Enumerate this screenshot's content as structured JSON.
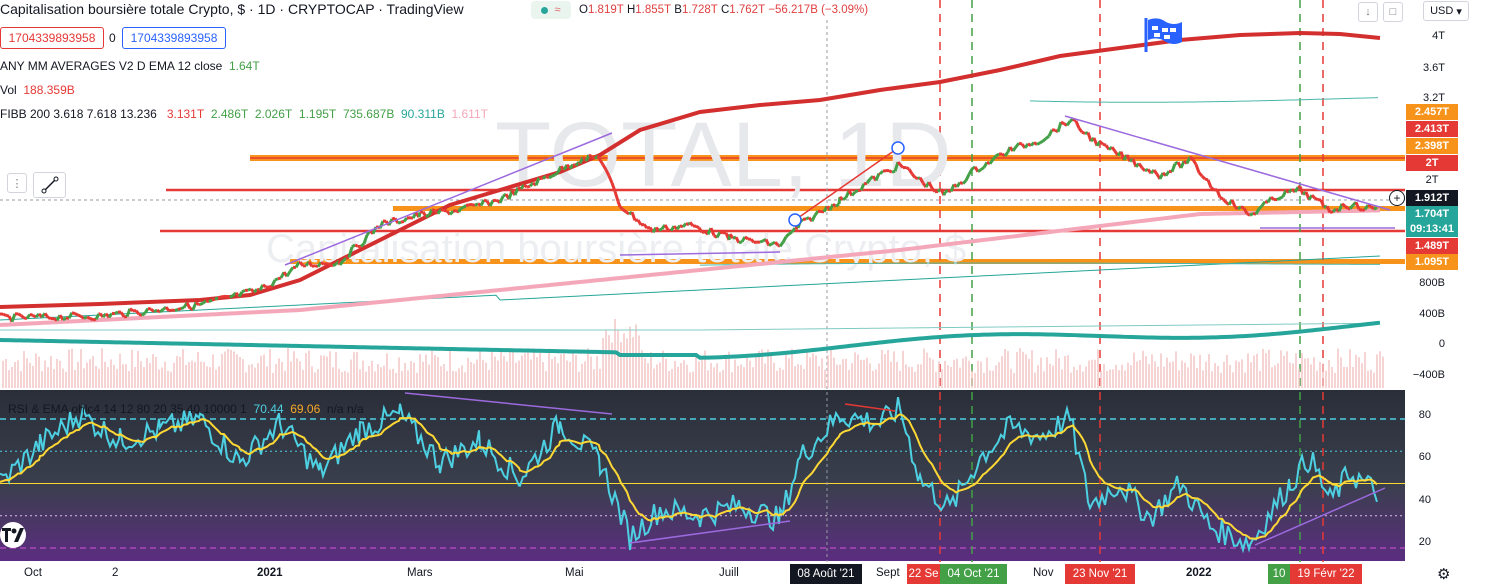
{
  "header": {
    "symbol_name": "Capitalisation boursière totale Crypto, $",
    "sep1": " · ",
    "interval": "1D",
    "sep2": " · ",
    "exchange": "CRYPTOCAP",
    "sep3": " · ",
    "source": "TradingView",
    "badge": "≈",
    "ohlc": {
      "o_label": "O",
      "o": "1.819T",
      "h_label": "H",
      "h": "1.855T",
      "b_label": "B",
      "b": "1.728T",
      "c_label": "C",
      "c": "1.762T",
      "change": "−56.217B (−3.09%)"
    }
  },
  "order_bar": {
    "sell_price": "1704339893958",
    "qty": "0",
    "buy_price": "1704339893958"
  },
  "indicators": {
    "mm_name": "ANY MM AVERAGES V2 D EMA 12 close",
    "mm_value": "1.64T",
    "vol_name": "Vol",
    "vol_value": "188.359B",
    "fibb_name": "FIBB 200 3.618 7.618 13.236",
    "fibb_values": [
      "3.131T",
      "2.486T",
      "2.026T",
      "1.195T",
      "735.687B",
      "90.311B",
      "1.611T"
    ],
    "rsi_name": "RSI & EMA ohlc4 14 12 80 20 35 40 10000 1",
    "rsi_value1": "70.44",
    "rsi_value2": "69.06",
    "rsi_nd": "n/a n/a"
  },
  "watermark": {
    "big": "TOTAL, 1D",
    "small": "Capitalisation boursière totale Crypto, $"
  },
  "price_axis": {
    "currency": "USD",
    "ticks": [
      "4T",
      "3.6T",
      "3.2T",
      "2T",
      "800B",
      "400B",
      "0",
      "−400B"
    ],
    "labels": [
      {
        "text": "2.457T",
        "color": "#f7931a"
      },
      {
        "text": "2.413T",
        "color": "#e53935"
      },
      {
        "text": "2.398T",
        "color": "#f7931a"
      },
      {
        "text": "2T",
        "color": "#e53935"
      },
      {
        "text": "2T",
        "color": "#f7931a"
      },
      {
        "text": "1.912T",
        "color": "#131722"
      },
      {
        "text": "1.704T",
        "color": "#26a69a"
      },
      {
        "text": "09:13:41",
        "color": "#26a69a"
      },
      {
        "text": "1.489T",
        "color": "#e53935"
      },
      {
        "text": "1.095T",
        "color": "#f7931a"
      }
    ]
  },
  "rsi_axis": {
    "ticks": [
      "80",
      "60",
      "40",
      "20"
    ]
  },
  "time_axis": {
    "ticks": [
      "Oct",
      "2",
      "2021",
      "Mars",
      "Mai",
      "Juill",
      "Sept",
      "Nov",
      "2022"
    ],
    "chips": [
      {
        "text": "08 Août '21",
        "color": "#131722"
      },
      {
        "text": "22 Se",
        "color": "#e53935"
      },
      {
        "text": "04 Oct '21",
        "color": "#43a047"
      },
      {
        "text": "23 Nov '21",
        "color": "#e53935"
      },
      {
        "text": "10",
        "color": "#43a047"
      },
      {
        "text": "19 Févr '22",
        "color": "#e53935"
      }
    ]
  },
  "colors": {
    "ema_green": "#43a047",
    "ema_red": "#e53935",
    "ma_thick_red": "#d32f2f",
    "ma_teal": "#26a69a",
    "ma_pink": "#f4a7b9",
    "fib_orange": "#f7931a",
    "rsi_line": "#4dd0e1",
    "rsi_ema": "#fdd835",
    "trend_purple": "#9c6ade"
  }
}
